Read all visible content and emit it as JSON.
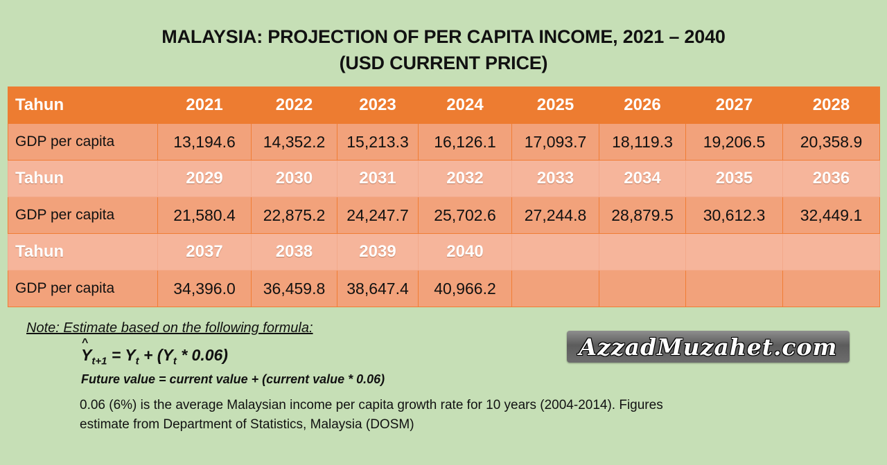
{
  "title": {
    "line1": "MALAYSIA: PROJECTION OF PER CAPITA INCOME, 2021 – 2040",
    "line2": "(USD CURRENT PRICE)"
  },
  "table": {
    "year_label": "Tahun",
    "gdp_label": "GDP per capita",
    "rows": [
      {
        "years": [
          "2021",
          "2022",
          "2023",
          "2024",
          "2025",
          "2026",
          "2027",
          "2028"
        ],
        "values": [
          "13,194.6",
          "14,352.2",
          "15,213.3",
          "16,126.1",
          "17,093.7",
          "18,119.3",
          "19,206.5",
          "20,358.9"
        ]
      },
      {
        "years": [
          "2029",
          "2030",
          "2031",
          "2032",
          "2033",
          "2034",
          "2035",
          "2036"
        ],
        "values": [
          "21,580.4",
          "22,875.2",
          "24,247.7",
          "25,702.6",
          "27,244.8",
          "28,879.5",
          "30,612.3",
          "32,449.1"
        ]
      },
      {
        "years": [
          "2037",
          "2038",
          "2039",
          "2040",
          "",
          "",
          "",
          ""
        ],
        "values": [
          "34,396.0",
          "36,459.8",
          "38,647.4",
          "40,966.2",
          "",
          "",
          "",
          ""
        ]
      }
    ]
  },
  "note": {
    "heading": "Note: Estimate based on the following formula:",
    "formula": {
      "y": "Y",
      "hat": "^",
      "sub_next": "t+1",
      "eq": " = ",
      "yt": "Y",
      "sub_t": "t",
      "plus": " + (",
      "yt2": "Y",
      "sub_t2": "t",
      "rest": " * 0.06)"
    },
    "formula_text": "Future value = current value + (current value * 0.06)",
    "description": "0.06 (6%) is the average Malaysian income per capita growth rate for 10 years (2004-2014). Figures estimate from Department of Statistics, Malaysia (DOSM)"
  },
  "brand": "AzzadMuzahet.com"
}
